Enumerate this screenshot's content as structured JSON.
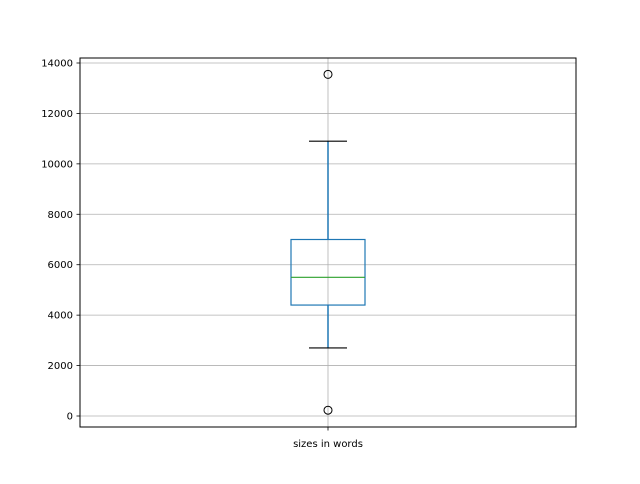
{
  "chart_data": {
    "type": "box",
    "title": "",
    "xlabel": "",
    "ylabel": "",
    "categories": [
      "sizes in words"
    ],
    "boxes": [
      {
        "label": "sizes in words",
        "whisker_low": 2700,
        "q1": 4400,
        "median": 5500,
        "q3": 7000,
        "whisker_high": 10900,
        "outliers": [
          13550,
          230
        ]
      }
    ],
    "ylim": [
      -400,
      14200
    ],
    "yticks": [
      0,
      2000,
      4000,
      6000,
      8000,
      10000,
      12000,
      14000
    ],
    "ytick_labels": [
      "0",
      "2000",
      "4000",
      "6000",
      "8000",
      "10000",
      "12000",
      "14000"
    ],
    "grid": true,
    "colors": {
      "box": "#1f77b4",
      "median": "#2ca02c",
      "caps": "#000000",
      "grid": "#b0b0b0"
    }
  }
}
